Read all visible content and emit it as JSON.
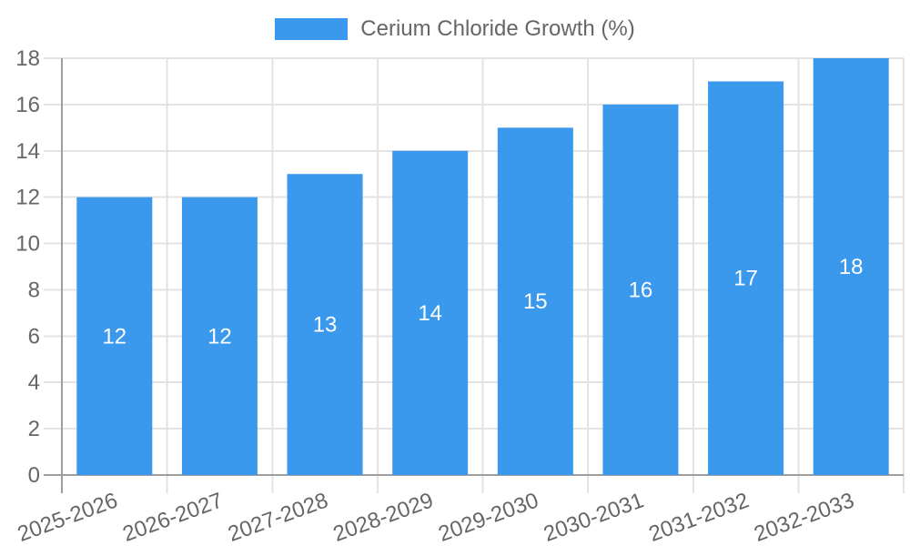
{
  "legend": {
    "label": "Cerium Chloride Growth (%)"
  },
  "chart_data": {
    "type": "bar",
    "title": "Cerium Chloride Growth (%)",
    "categories": [
      "2025-2026",
      "2026-2027",
      "2027-2028",
      "2028-2029",
      "2029-2030",
      "2030-2031",
      "2031-2032",
      "2032-2033"
    ],
    "values": [
      12,
      12,
      13,
      14,
      15,
      16,
      17,
      18
    ],
    "series_name": "Cerium Chloride Growth (%)",
    "xlabel": "",
    "ylabel": "",
    "ylim": [
      0,
      18
    ],
    "ytick_step": 2,
    "ytick_labels": [
      "0",
      "2",
      "4",
      "6",
      "8",
      "10",
      "12",
      "14",
      "16",
      "18"
    ],
    "grid": true,
    "legend_position": "top",
    "x_label_rotation_deg": -20,
    "data_labels_inside": true,
    "colors": {
      "bar": "#3a99ec",
      "data_label": "#ffffff",
      "axis_text": "#666666",
      "grid_line": "#e3e3e3",
      "axis_line": "#9e9e9e",
      "background": "#ffffff"
    }
  }
}
